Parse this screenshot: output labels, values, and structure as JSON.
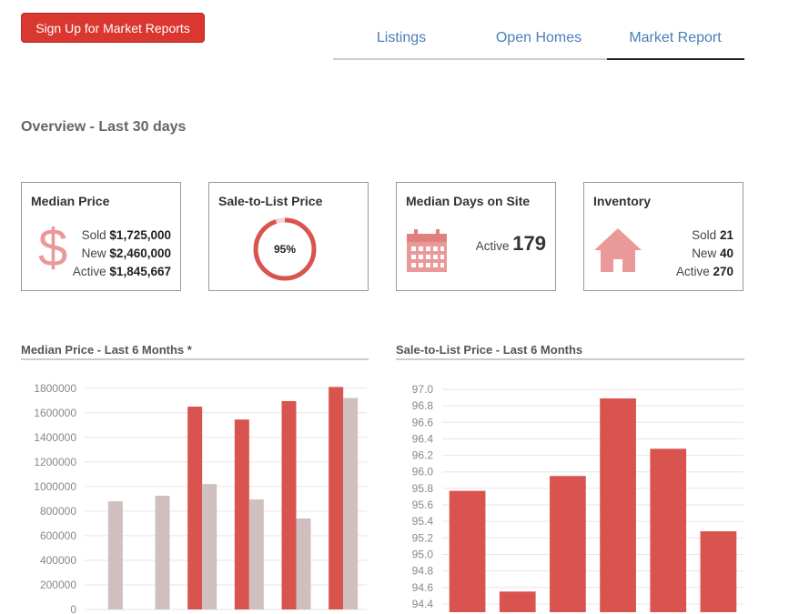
{
  "header": {
    "button": "Sign Up for Market Reports",
    "tabs": [
      "Listings",
      "Open Homes",
      "Market Report"
    ]
  },
  "overview_title": "Overview - Last 30 days",
  "cards": [
    {
      "title": "Median Price",
      "icon": "$",
      "rows": [
        {
          "label": "Sold",
          "value": "$1,725,000"
        },
        {
          "label": "New",
          "value": "$2,460,000"
        },
        {
          "label": "Active",
          "value": "$1,845,667"
        }
      ]
    },
    {
      "title": "Sale-to-List Price",
      "value": 95,
      "value_label": "95%"
    },
    {
      "title": "Median Days on Site",
      "rows": [
        {
          "label": "Active",
          "value": "179"
        }
      ]
    },
    {
      "title": "Inventory",
      "rows": [
        {
          "label": "Sold",
          "value": "21"
        },
        {
          "label": "New",
          "value": "40"
        },
        {
          "label": "Active",
          "value": "270"
        }
      ]
    }
  ],
  "chart_data": [
    {
      "type": "bar",
      "title": "Median Price - Last 6 Months *",
      "categories": [
        null,
        null,
        null,
        null,
        null,
        null
      ],
      "series": [
        {
          "color": "#d9534f",
          "values": [
            null,
            null,
            1650000,
            1545000,
            1695000,
            1810000
          ]
        },
        {
          "color": "#cfbfbe",
          "values": [
            880000,
            925000,
            1020000,
            895000,
            740000,
            1720000
          ]
        }
      ],
      "ylim": [
        0,
        1850000
      ],
      "yticks": [
        0,
        200000,
        400000,
        600000,
        800000,
        1000000,
        1200000,
        1400000,
        1600000,
        1800000
      ],
      "grid": true
    },
    {
      "type": "bar",
      "title": "Sale-to-List Price - Last 6 Months",
      "categories": [
        null,
        null,
        null,
        null,
        null,
        null
      ],
      "values": [
        95.77,
        94.55,
        95.95,
        96.89,
        96.28,
        95.28
      ],
      "color": "#d9534f",
      "ylim": [
        94.3,
        97.0
      ],
      "yticks": [
        94.4,
        94.6,
        94.8,
        {
          "value": 95,
          "label": "95.0"
        },
        95.2,
        95.4,
        95.6,
        95.8,
        {
          "value": 96,
          "label": "96.0"
        },
        96.2,
        96.4,
        96.6,
        96.8,
        {
          "value": 97,
          "label": "97.0"
        }
      ],
      "grid": true
    }
  ]
}
